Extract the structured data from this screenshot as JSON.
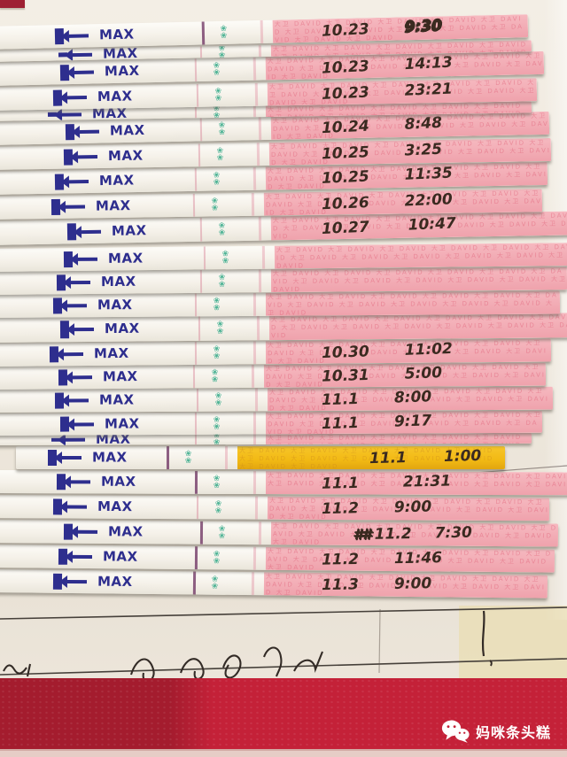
{
  "labels": {
    "max": "MAX",
    "pattern_glyph": "❀",
    "brand_pattern": "大卫 DAVID 大卫 DAVID 大卫 DAVID 大卫 DAVID 大卫 DAVID 大卫 DAVID 大卫 DAVID 大卫 DAVID 大卫 DAVID 大卫 DAVID 大卫 DAVID 大卫 DAVID"
  },
  "strips": [
    {
      "date": "10.23",
      "time": "9:30",
      "scribbled": true
    },
    {
      "date": "",
      "time": ""
    },
    {
      "date": "10.23",
      "time": "14:13"
    },
    {
      "date": "10.23",
      "time": "23:21"
    },
    {
      "date": "",
      "time": ""
    },
    {
      "date": "10.24",
      "time": "8:48"
    },
    {
      "date": "10.25",
      "time": "3:25"
    },
    {
      "date": "10.25",
      "time": "11:35"
    },
    {
      "date": "10.26",
      "time": "22:00"
    },
    {
      "date": "10.27",
      "time": "10:47"
    },
    {
      "date": "",
      "time": ""
    },
    {
      "date": "",
      "time": ""
    },
    {
      "date": "",
      "time": ""
    },
    {
      "date": "",
      "time": ""
    },
    {
      "date": "10.30",
      "time": "11:02"
    },
    {
      "date": "10.31",
      "time": "5:00"
    },
    {
      "date": "11.1",
      "time": "8:00"
    },
    {
      "date": "11.1",
      "time": "9:17"
    },
    {
      "date": "",
      "time": ""
    },
    {
      "date": "11.1",
      "time": "1:00",
      "highlight": true
    },
    {
      "date": "11.1",
      "time": "21:31"
    },
    {
      "date": "11.2",
      "time": "9:00"
    },
    {
      "date": "11.2",
      "time": "7:30",
      "prefix": "##"
    },
    {
      "date": "11.2",
      "time": "11:46"
    },
    {
      "date": "11.3",
      "time": "9:00"
    }
  ],
  "watermark": {
    "icon": "wechat-icon",
    "label": "妈咪条头糕"
  },
  "colors": {
    "navy": "#2e2e8e",
    "green": "#3fae8e",
    "pink": "#f6b9c0",
    "pink_deep": "#efa2ac",
    "brand_red": "#e06078",
    "yellow": "#f2b914",
    "ink": "#3a2a20",
    "paper": "#efe9de",
    "cloth_red": "#c42138",
    "cloth_dark": "#a41c2e"
  }
}
